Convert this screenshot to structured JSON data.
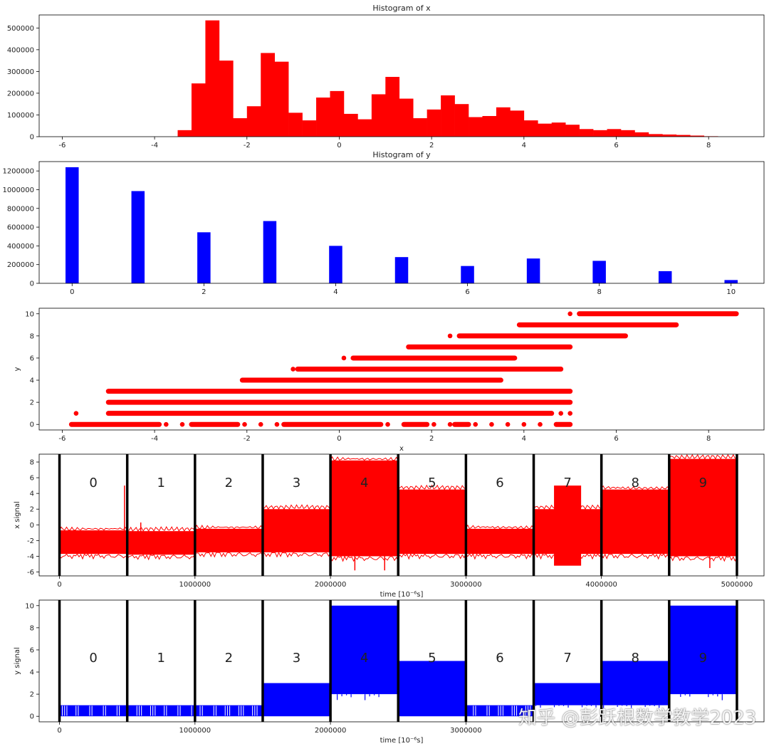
{
  "colors": {
    "red": "#ff0000",
    "blue": "#0000ff",
    "axis": "#000000",
    "text": "#222222"
  },
  "watermark": "知乎 @彭跃根数学教学2023",
  "chart_data": [
    {
      "type": "bar",
      "title": "Histogram of x",
      "xlabel": "",
      "ylabel": "",
      "xlim": [
        -6.5,
        9.2
      ],
      "ylim": [
        0,
        560000
      ],
      "xticks": [
        "-6",
        "-4",
        "-2",
        "0",
        "2",
        "4",
        "6",
        "8"
      ],
      "yticks": [
        "0",
        "100000",
        "200000",
        "300000",
        "400000",
        "500000"
      ],
      "color": "#ff0000",
      "bin_start": -3.5,
      "bin_width": 0.3,
      "values": [
        30000,
        245000,
        535000,
        350000,
        85000,
        140000,
        385000,
        345000,
        110000,
        75000,
        180000,
        210000,
        105000,
        80000,
        195000,
        275000,
        175000,
        85000,
        125000,
        190000,
        150000,
        90000,
        95000,
        135000,
        120000,
        75000,
        60000,
        65000,
        55000,
        35000,
        30000,
        35000,
        30000,
        20000,
        12000,
        10000,
        8000,
        5000,
        2000,
        0
      ]
    },
    {
      "type": "bar",
      "title": "Histogram of y",
      "xlabel": "",
      "ylabel": "",
      "xlim": [
        -0.5,
        10.5
      ],
      "ylim": [
        0,
        1300000
      ],
      "xticks": [
        "0",
        "2",
        "4",
        "6",
        "8",
        "10"
      ],
      "yticks": [
        "0",
        "200000",
        "400000",
        "600000",
        "800000",
        "1000000",
        "1200000"
      ],
      "color": "#0000ff",
      "x": [
        0,
        1,
        2,
        3,
        4,
        5,
        6,
        7,
        8,
        9,
        10
      ],
      "bar_width": 0.2,
      "values": [
        1240000,
        985000,
        545000,
        665000,
        400000,
        280000,
        185000,
        265000,
        240000,
        130000,
        35000
      ]
    },
    {
      "type": "scatter",
      "title": "",
      "xlabel": "x",
      "ylabel": "y",
      "xlim": [
        -6.5,
        9.2
      ],
      "ylim": [
        -0.5,
        10.5
      ],
      "xticks": [
        "-6",
        "-4",
        "-2",
        "0",
        "2",
        "4",
        "6",
        "8"
      ],
      "yticks": [
        "0",
        "2",
        "4",
        "6",
        "8",
        "10"
      ],
      "color": "#ff0000",
      "segments": [
        {
          "y": 0,
          "from": -5.8,
          "to": 5.0,
          "gaps": [
            [
              -3.9,
              -3.2
            ],
            [
              -2.2,
              -1.2
            ],
            [
              0.9,
              1.4
            ],
            [
              1.9,
              2.5
            ],
            [
              2.8,
              4.7
            ]
          ]
        },
        {
          "y": 1,
          "from": -5.0,
          "to": 4.6,
          "extra": [
            -5.7,
            4.8,
            5.0
          ]
        },
        {
          "y": 2,
          "from": -5.0,
          "to": 5.0
        },
        {
          "y": 3,
          "from": -5.0,
          "to": 5.0
        },
        {
          "y": 4,
          "from": -2.1,
          "to": 3.5
        },
        {
          "y": 5,
          "from": -0.9,
          "to": 4.8,
          "extra": [
            -1.0
          ]
        },
        {
          "y": 6,
          "from": 0.3,
          "to": 3.8,
          "extra": [
            0.1
          ]
        },
        {
          "y": 7,
          "from": 1.5,
          "to": 5.0
        },
        {
          "y": 8,
          "from": 2.6,
          "to": 6.2,
          "extra": [
            2.4
          ]
        },
        {
          "y": 9,
          "from": 3.9,
          "to": 7.3
        },
        {
          "y": 10,
          "from": 5.2,
          "to": 8.6,
          "extra": [
            5.0
          ]
        }
      ]
    },
    {
      "type": "line",
      "title": "",
      "xlabel": "time [10⁻⁶s]",
      "ylabel": "x signal",
      "xlim": [
        -150000,
        5200000
      ],
      "ylim": [
        -6.5,
        9
      ],
      "xticks": [
        "0",
        "1000000",
        "2000000",
        "3000000",
        "4000000",
        "5000000"
      ],
      "yticks": [
        "-6",
        "-4",
        "-2",
        "0",
        "2",
        "4",
        "6",
        "8"
      ],
      "color": "#ff0000",
      "segment_labels": [
        "0",
        "1",
        "2",
        "3",
        "4",
        "5",
        "6",
        "7",
        "8",
        "9"
      ],
      "segment_boundaries": [
        0,
        500000,
        1000000,
        1500000,
        2000000,
        2500000,
        3000000,
        3500000,
        4000000,
        4500000,
        5000000
      ],
      "bands": [
        [
          -3.7,
          -0.7
        ],
        [
          -3.8,
          -0.8
        ],
        [
          -3.5,
          -0.5
        ],
        [
          -3.5,
          2.0
        ],
        [
          -4.0,
          8.2
        ],
        [
          -3.7,
          4.5
        ],
        [
          -3.7,
          -0.5
        ],
        [
          -3.7,
          2.0
        ],
        [
          -3.7,
          4.5
        ],
        [
          -4.0,
          8.4
        ]
      ],
      "spikes": [
        [
          480000,
          5.0
        ],
        [
          600000,
          0.3
        ],
        [
          2180000,
          -5.8
        ],
        [
          2400000,
          -5.8
        ],
        [
          4800000,
          -5.5
        ]
      ],
      "inset": {
        "x_from": 3650000,
        "x_to": 3850000,
        "low": -5.2,
        "high": 5.0
      }
    },
    {
      "type": "line",
      "title": "",
      "xlabel": "time [10⁻⁶s]",
      "ylabel": "y signal",
      "xlim": [
        -150000,
        5200000
      ],
      "ylim": [
        -0.5,
        10.5
      ],
      "xticks": [
        "0",
        "1000000",
        "2000000",
        "3000000"
      ],
      "yticks": [
        "0",
        "2",
        "4",
        "6",
        "8",
        "10"
      ],
      "color": "#0000ff",
      "segment_labels": [
        "0",
        "1",
        "2",
        "3",
        "4",
        "5",
        "6",
        "7",
        "8",
        "9"
      ],
      "segment_boundaries": [
        0,
        500000,
        1000000,
        1500000,
        2000000,
        2500000,
        3000000,
        3500000,
        4000000,
        4500000,
        5000000
      ],
      "bands": [
        [
          0,
          1
        ],
        [
          0,
          1
        ],
        [
          0,
          1
        ],
        [
          0,
          3
        ],
        [
          2,
          10
        ],
        [
          0,
          5
        ],
        [
          0,
          1
        ],
        [
          1,
          3
        ],
        [
          1,
          5
        ],
        [
          2,
          10
        ]
      ]
    }
  ]
}
